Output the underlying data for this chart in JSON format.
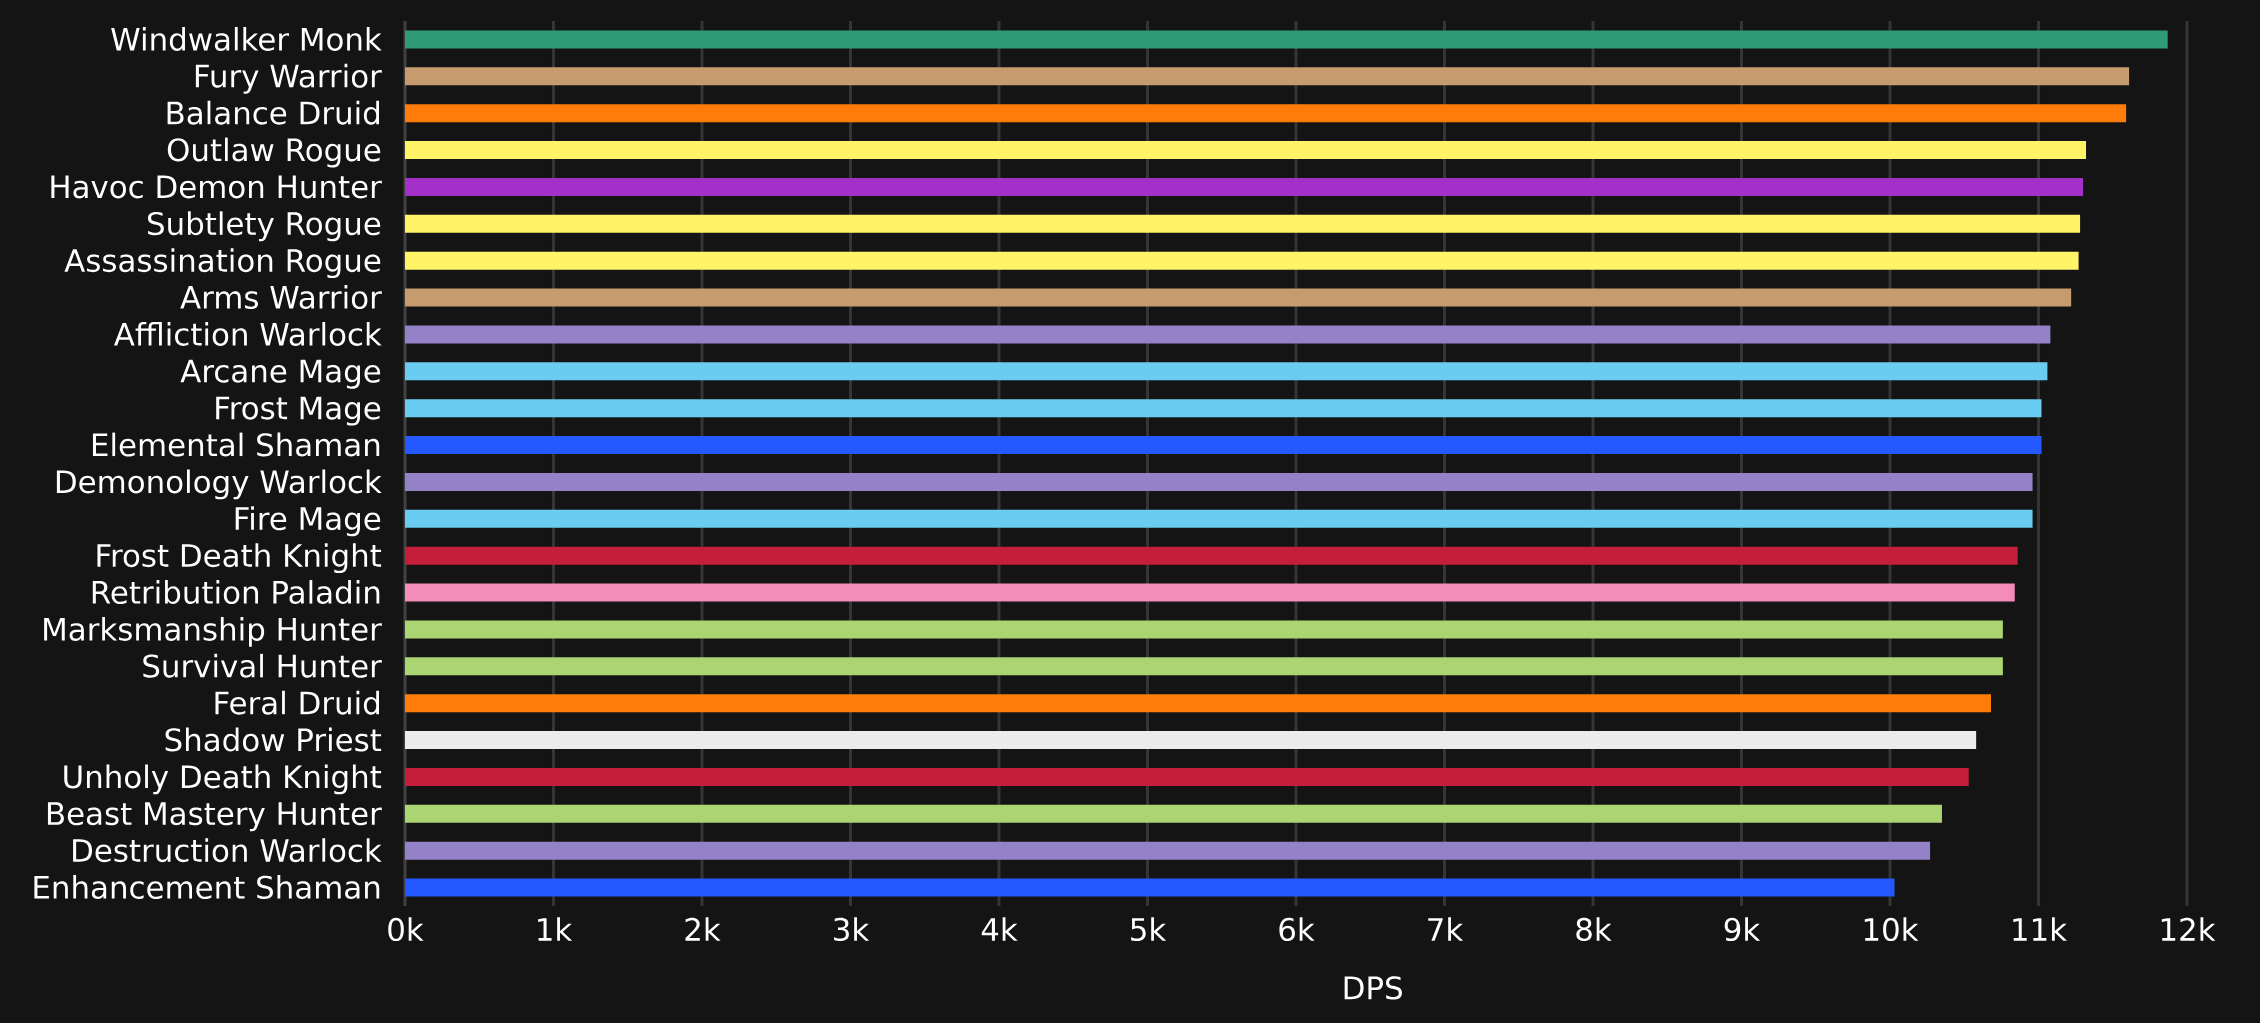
{
  "chart_data": {
    "type": "bar",
    "orientation": "horizontal",
    "xlabel": "DPS",
    "categories": [
      "Windwalker Monk",
      "Fury Warrior",
      "Balance Druid",
      "Outlaw Rogue",
      "Havoc Demon Hunter",
      "Subtlety Rogue",
      "Assassination Rogue",
      "Arms Warrior",
      "Affliction Warlock",
      "Arcane Mage",
      "Frost Mage",
      "Elemental Shaman",
      "Demonology Warlock",
      "Fire Mage",
      "Frost Death Knight",
      "Retribution Paladin",
      "Marksmanship Hunter",
      "Survival Hunter",
      "Feral Druid",
      "Shadow Priest",
      "Unholy Death Knight",
      "Beast Mastery Hunter",
      "Destruction Warlock",
      "Enhancement Shaman"
    ],
    "values": [
      11870,
      11610,
      11590,
      11320,
      11300,
      11280,
      11270,
      11220,
      11080,
      11060,
      11020,
      11020,
      10960,
      10960,
      10860,
      10840,
      10760,
      10760,
      10680,
      10580,
      10530,
      10350,
      10270,
      10030
    ],
    "colors": [
      "#2f9b77",
      "#c69b6d",
      "#ff7c0a",
      "#fff468",
      "#a330c9",
      "#fff468",
      "#fff468",
      "#c69b6d",
      "#9482c9",
      "#69ccf0",
      "#69ccf0",
      "#2459ff",
      "#9482c9",
      "#69ccf0",
      "#c41e3a",
      "#f48cba",
      "#abd473",
      "#abd473",
      "#ff7c0a",
      "#ececec",
      "#c41e3a",
      "#abd473",
      "#9482c9",
      "#2459ff"
    ],
    "xlim": [
      0,
      12000
    ],
    "xticks": [
      {
        "value": 0,
        "label": "0k"
      },
      {
        "value": 1000,
        "label": "1k"
      },
      {
        "value": 2000,
        "label": "2k"
      },
      {
        "value": 3000,
        "label": "3k"
      },
      {
        "value": 4000,
        "label": "4k"
      },
      {
        "value": 5000,
        "label": "5k"
      },
      {
        "value": 6000,
        "label": "6k"
      },
      {
        "value": 7000,
        "label": "7k"
      },
      {
        "value": 8000,
        "label": "8k"
      },
      {
        "value": 9000,
        "label": "9k"
      },
      {
        "value": 10000,
        "label": "10k"
      },
      {
        "value": 11000,
        "label": "11k"
      },
      {
        "value": 12000,
        "label": "12k"
      }
    ],
    "grid": "x"
  }
}
